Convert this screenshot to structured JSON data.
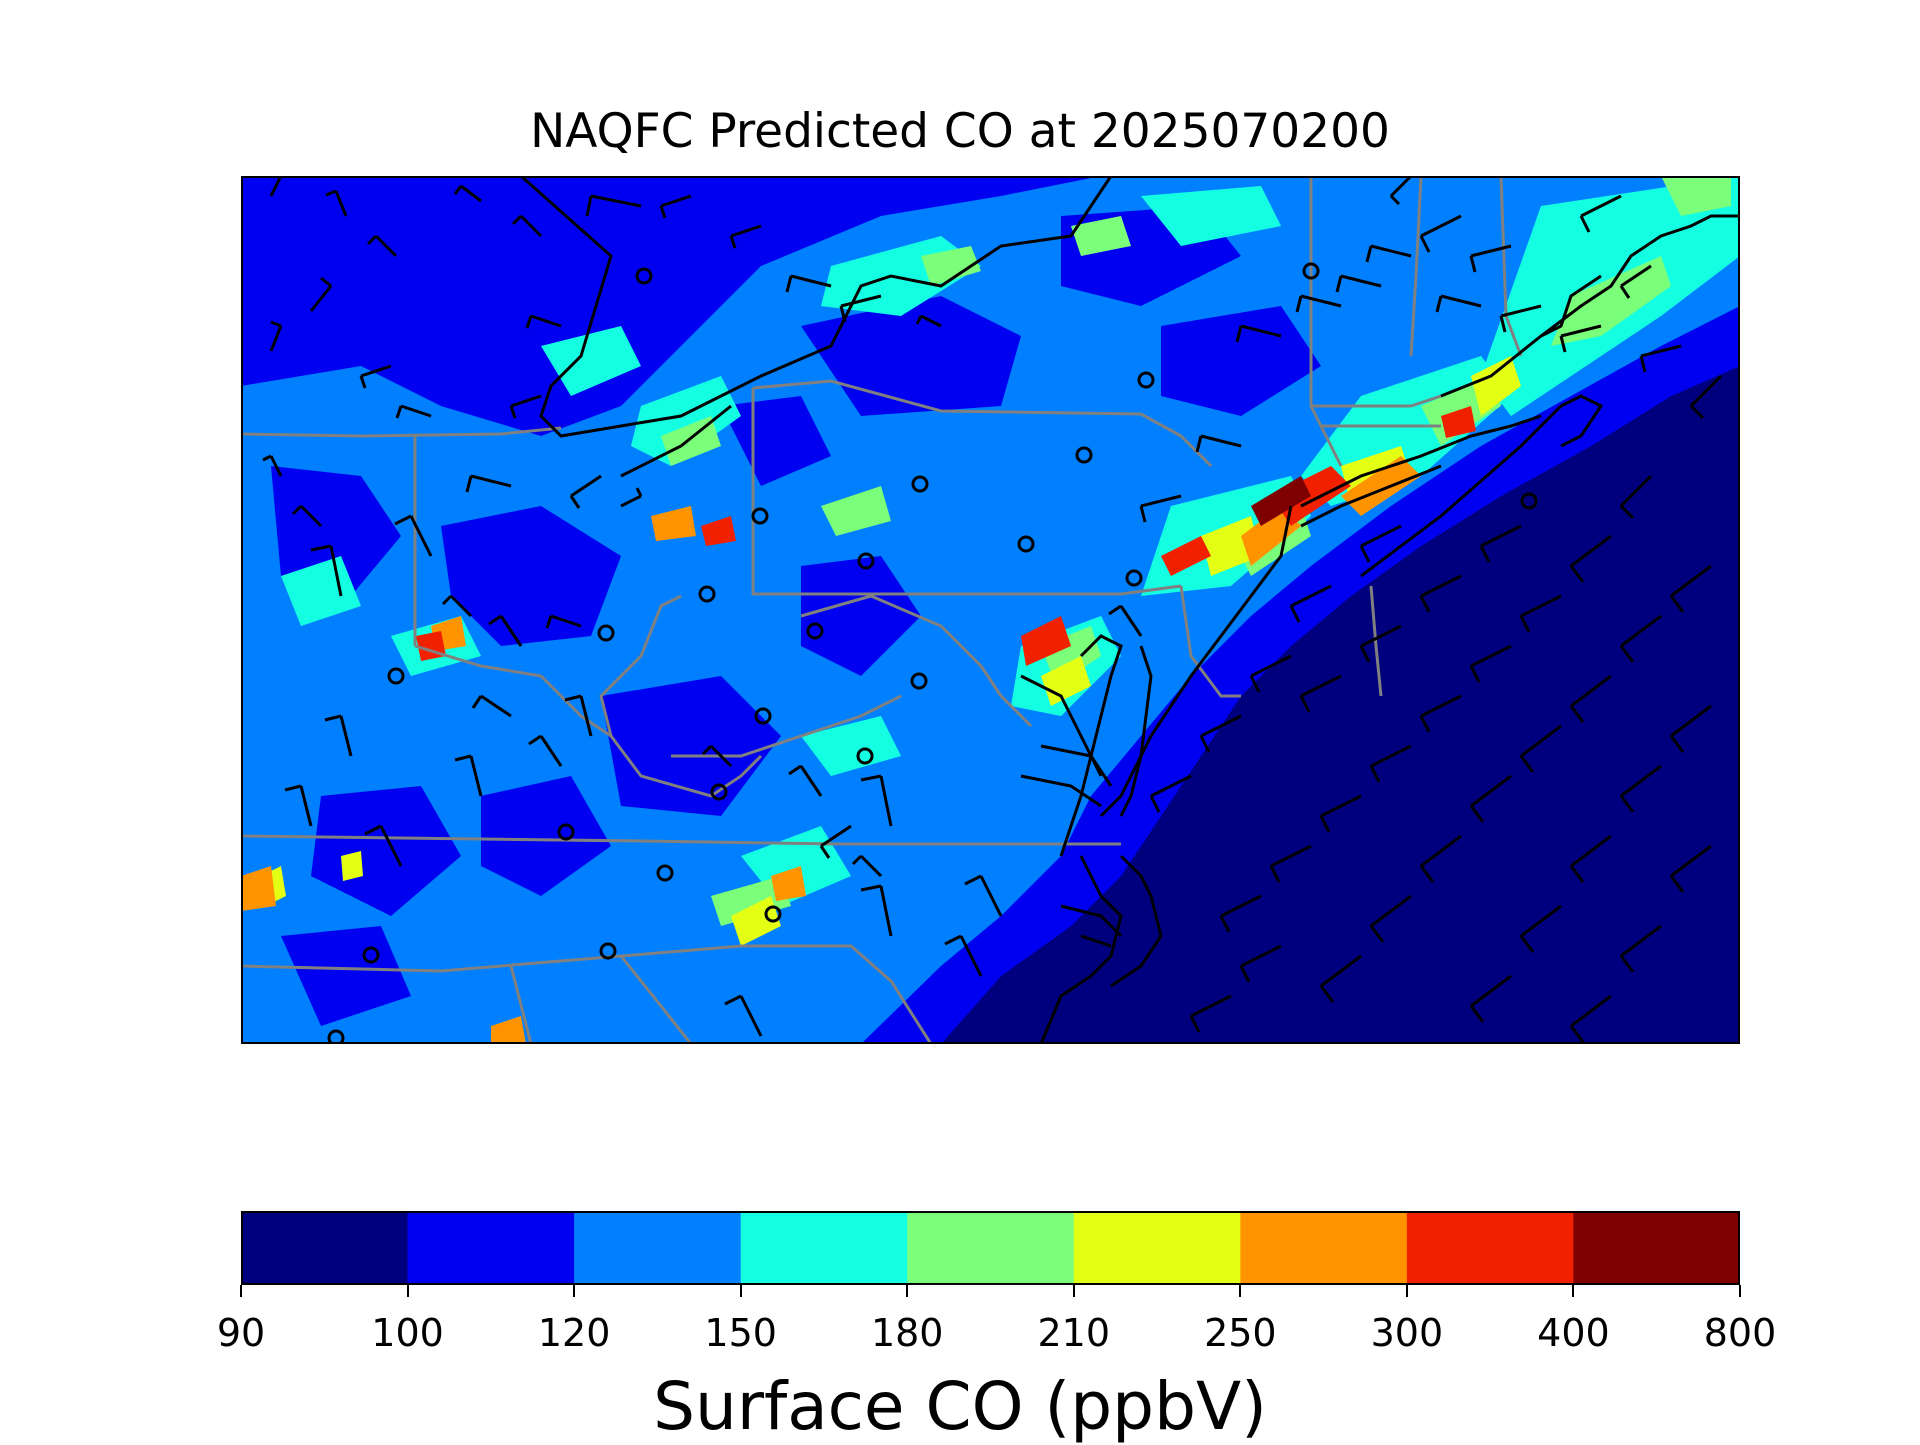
{
  "title": "NAQFC Predicted CO at 2025070200",
  "colorbar": {
    "label": "Surface CO (ppbV)",
    "ticks": [
      "90",
      "100",
      "120",
      "150",
      "180",
      "210",
      "250",
      "300",
      "400",
      "800"
    ],
    "colors": [
      "#00007f",
      "#0000f1",
      "#0080ff",
      "#14ffe2",
      "#7bff7b",
      "#e2ff14",
      "#ff9400",
      "#f12100",
      "#7f0000"
    ]
  },
  "map": {
    "type": "filled contour map with wind barbs and monitor sites",
    "background_color": "#0000f1",
    "ocean_color": "#00007f",
    "coastline_color": "#000000",
    "state_border_color": "#808080",
    "wind_barb_color": "#000000",
    "site_marker": "open circle"
  }
}
